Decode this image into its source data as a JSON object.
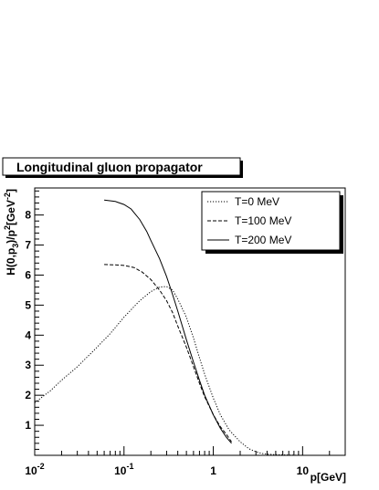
{
  "chart_data": {
    "type": "line",
    "title": "Longitudinal gluon propagator",
    "xlabel": "p[GeV]",
    "ylabel": {
      "parts": [
        {
          "t": "H(0,p",
          "s": "n"
        },
        {
          "t": "3",
          "s": "sub"
        },
        {
          "t": ")/p",
          "s": "n"
        },
        {
          "t": "2",
          "s": "sup"
        },
        {
          "t": "[GeV",
          "s": "n"
        },
        {
          "t": "-2",
          "s": "sup"
        },
        {
          "t": "]",
          "s": "n"
        }
      ]
    },
    "xscale": "log",
    "xlim": [
      0.01,
      30
    ],
    "ylim": [
      0,
      8.9
    ],
    "x_ticks": [
      {
        "value": 0.01,
        "base": "10",
        "exp": "-2"
      },
      {
        "value": 0.1,
        "base": "10",
        "exp": "-1"
      },
      {
        "value": 1,
        "base": "1",
        "exp": ""
      },
      {
        "value": 10,
        "base": "10",
        "exp": ""
      }
    ],
    "y_ticks": [
      1,
      2,
      3,
      4,
      5,
      6,
      7,
      8
    ],
    "legend_position": "top-right",
    "series": [
      {
        "name": "T=0 MeV",
        "style": "dotted",
        "points": [
          [
            0.01,
            1.75
          ],
          [
            0.015,
            2.15
          ],
          [
            0.02,
            2.5
          ],
          [
            0.03,
            2.95
          ],
          [
            0.05,
            3.6
          ],
          [
            0.07,
            4.05
          ],
          [
            0.1,
            4.6
          ],
          [
            0.15,
            5.15
          ],
          [
            0.2,
            5.45
          ],
          [
            0.25,
            5.6
          ],
          [
            0.3,
            5.62
          ],
          [
            0.35,
            5.5
          ],
          [
            0.4,
            5.2
          ],
          [
            0.5,
            4.6
          ],
          [
            0.6,
            3.9
          ],
          [
            0.7,
            3.25
          ],
          [
            0.8,
            2.7
          ],
          [
            1.0,
            1.9
          ],
          [
            1.2,
            1.35
          ],
          [
            1.5,
            0.85
          ],
          [
            2.0,
            0.45
          ],
          [
            2.5,
            0.22
          ],
          [
            3.0,
            0.12
          ],
          [
            3.5,
            0.06
          ],
          [
            4.0,
            0.04
          ],
          [
            5.0,
            0.02
          ],
          [
            7.0,
            0.01
          ],
          [
            10.0,
            0.0
          ]
        ]
      },
      {
        "name": "T=100 MeV",
        "style": "dashed",
        "points": [
          [
            0.06,
            6.35
          ],
          [
            0.08,
            6.34
          ],
          [
            0.1,
            6.32
          ],
          [
            0.13,
            6.25
          ],
          [
            0.16,
            6.1
          ],
          [
            0.2,
            5.85
          ],
          [
            0.25,
            5.5
          ],
          [
            0.3,
            5.15
          ],
          [
            0.35,
            4.75
          ],
          [
            0.4,
            4.3
          ],
          [
            0.5,
            3.6
          ],
          [
            0.6,
            2.95
          ],
          [
            0.7,
            2.4
          ],
          [
            0.8,
            1.95
          ],
          [
            1.0,
            1.35
          ],
          [
            1.2,
            0.95
          ],
          [
            1.4,
            0.7
          ],
          [
            1.6,
            0.45
          ]
        ]
      },
      {
        "name": "T=200 MeV",
        "style": "solid",
        "points": [
          [
            0.06,
            8.5
          ],
          [
            0.08,
            8.45
          ],
          [
            0.1,
            8.35
          ],
          [
            0.12,
            8.2
          ],
          [
            0.15,
            7.85
          ],
          [
            0.18,
            7.45
          ],
          [
            0.2,
            7.15
          ],
          [
            0.25,
            6.55
          ],
          [
            0.3,
            5.95
          ],
          [
            0.35,
            5.35
          ],
          [
            0.4,
            4.8
          ],
          [
            0.5,
            3.85
          ],
          [
            0.6,
            3.1
          ],
          [
            0.7,
            2.5
          ],
          [
            0.8,
            2.0
          ],
          [
            1.0,
            1.35
          ],
          [
            1.2,
            0.9
          ],
          [
            1.4,
            0.6
          ],
          [
            1.6,
            0.4
          ]
        ]
      }
    ]
  }
}
